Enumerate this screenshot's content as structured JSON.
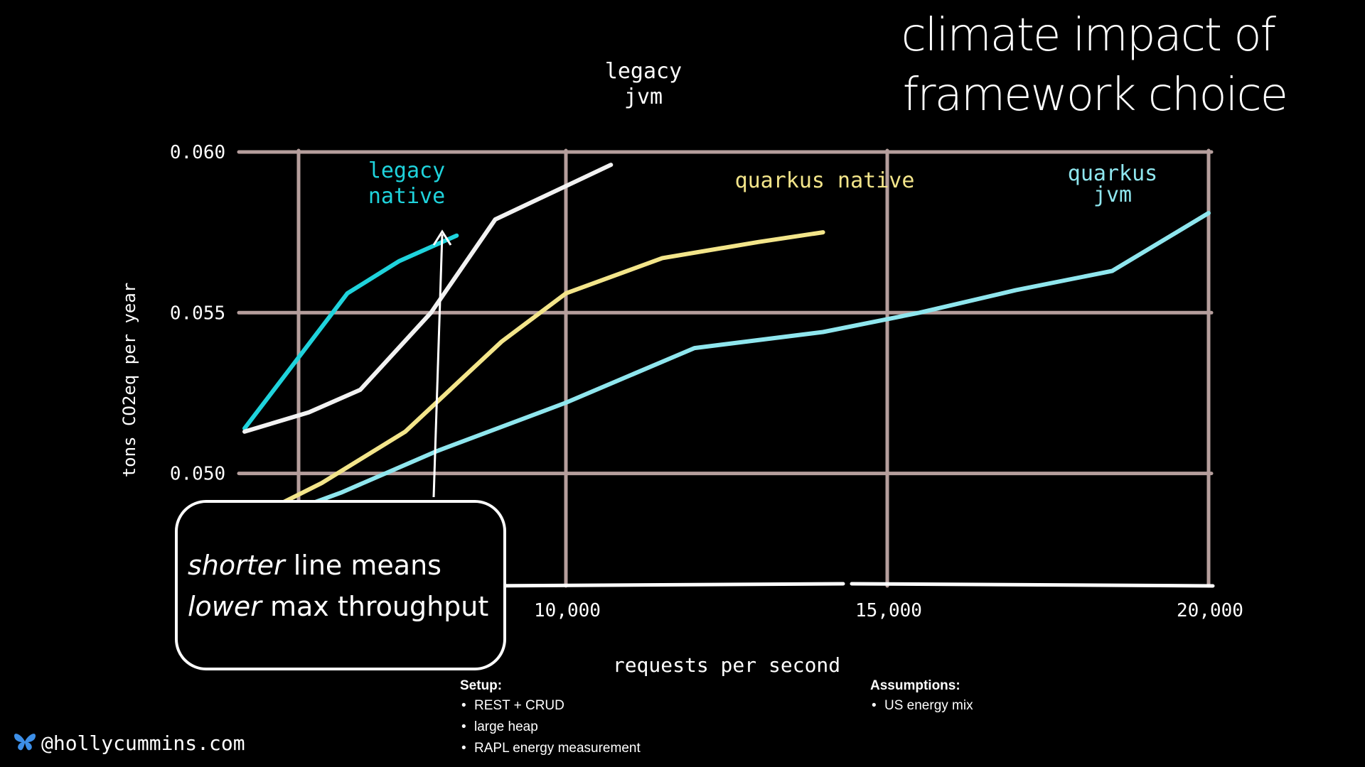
{
  "slide": {
    "title_line1": "climate impact of",
    "title_line2": "framework choice",
    "handle": "@hollycummins.com",
    "handle_icon": "butterfly-icon"
  },
  "callout": {
    "line1_em": "shorter",
    "line1_rest": " line means",
    "line2_em": "lower",
    "line2_rest": " max throughput"
  },
  "setup": {
    "heading": "Setup:",
    "items": [
      "REST + CRUD",
      "large heap",
      "RAPL energy measurement"
    ]
  },
  "assumptions": {
    "heading": "Assumptions:",
    "items": [
      "US energy mix"
    ]
  },
  "chart_data": {
    "type": "line",
    "title": "",
    "xlabel": "requests per second",
    "ylabel": "tons CO2eq per year",
    "xlim": [
      5000,
      20000
    ],
    "ylim": [
      0.0465,
      0.06
    ],
    "x_ticks": [
      10000,
      15000,
      20000
    ],
    "x_tick_labels": [
      "10,000",
      "15,000",
      "20,000"
    ],
    "y_ticks": [
      0.05,
      0.055,
      0.06
    ],
    "y_tick_labels": [
      "0.050",
      "0.055",
      "0.060"
    ],
    "grid": true,
    "legend": "none (series labeled directly at line ends)",
    "series": [
      {
        "name": "legacy native",
        "color": "#1fd3dc",
        "x": [
          5000,
          5800,
          6600,
          7400,
          8300
        ],
        "y": [
          0.0514,
          0.0535,
          0.0556,
          0.0566,
          0.0574
        ]
      },
      {
        "name": "legacy jvm",
        "color": "#f2f2f2",
        "x": [
          5000,
          6000,
          6800,
          7900,
          8900,
          10700
        ],
        "y": [
          0.0513,
          0.0519,
          0.0526,
          0.055,
          0.0579,
          0.0596
        ]
      },
      {
        "name": "quarkus native",
        "color": "#f3e58a",
        "x": [
          5000,
          6200,
          7500,
          9000,
          10000,
          11500,
          13000,
          14000
        ],
        "y": [
          0.0485,
          0.0497,
          0.0513,
          0.0541,
          0.0556,
          0.0567,
          0.0572,
          0.0575
        ]
      },
      {
        "name": "quarkus jvm",
        "color": "#8fe6ee",
        "x": [
          5000,
          6500,
          8000,
          10000,
          12000,
          14000,
          15500,
          17000,
          18500,
          20000
        ],
        "y": [
          0.0483,
          0.0494,
          0.0507,
          0.0522,
          0.0539,
          0.0544,
          0.055,
          0.0557,
          0.0563,
          0.0581
        ]
      }
    ]
  }
}
